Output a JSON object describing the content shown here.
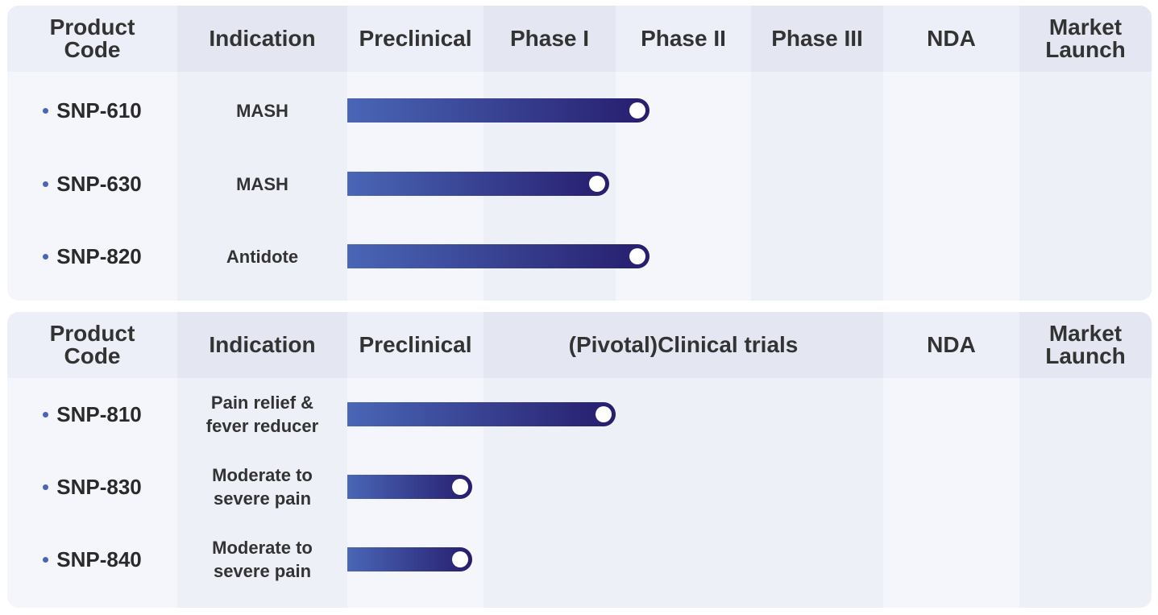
{
  "colors": {
    "header_light": "#eceff7",
    "header_dark": "#e4e7f2",
    "body_light": "#f5f6fb",
    "body_dark": "#eef0f8",
    "bar_start": "#4a66b6",
    "bar_end": "#271d6e",
    "bullet": "#4a64b8"
  },
  "chart_data": [
    {
      "type": "bar",
      "headers": [
        "Product\nCode",
        "Indication",
        "Preclinical",
        "Phase I",
        "Phase II",
        "Phase III",
        "NDA",
        "Market\nLaunch"
      ],
      "stages": [
        "Preclinical",
        "Phase I",
        "Phase II",
        "Phase III",
        "NDA",
        "Market Launch"
      ],
      "rows": [
        {
          "code": "SNP-610",
          "indication": "MASH",
          "progress_stages": 2.25
        },
        {
          "code": "SNP-630",
          "indication": "MASH",
          "progress_stages": 1.95
        },
        {
          "code": "SNP-820",
          "indication": "Antidote",
          "progress_stages": 2.25
        }
      ]
    },
    {
      "type": "bar",
      "headers": [
        "Product\nCode",
        "Indication",
        "Preclinical",
        "(Pivotal)Clinical trials",
        "NDA",
        "Market\nLaunch"
      ],
      "stages": [
        "Preclinical",
        "(Pivotal)Clinical trials",
        "NDA",
        "Market Launch"
      ],
      "rows": [
        {
          "code": "SNP-810",
          "indication": "Pain relief &\nfever reducer",
          "progress_stages": 1.33
        },
        {
          "code": "SNP-830",
          "indication": "Moderate to\nsevere pain",
          "progress_stages": 0.92
        },
        {
          "code": "SNP-840",
          "indication": "Moderate to\nsevere pain",
          "progress_stages": 0.92
        }
      ]
    }
  ]
}
